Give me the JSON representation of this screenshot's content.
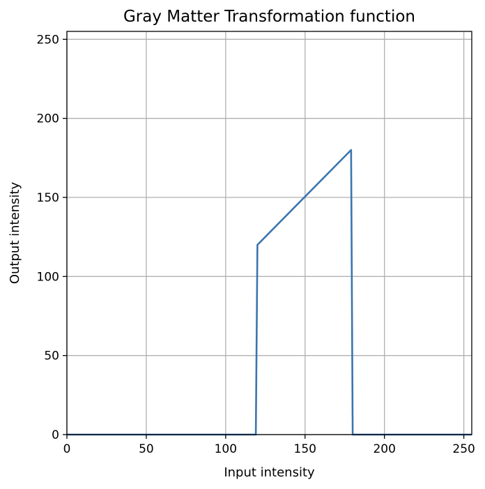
{
  "chart_data": {
    "type": "line",
    "title": "Gray Matter Transformation function",
    "xlabel": "Input intensity",
    "ylabel": "Output intensity",
    "xlim": [
      0,
      255
    ],
    "ylim": [
      0,
      255
    ],
    "xticks": [
      0,
      50,
      100,
      150,
      200,
      250
    ],
    "yticks": [
      0,
      50,
      100,
      150,
      200,
      250
    ],
    "grid": true,
    "series": [
      {
        "color": "#3b75af",
        "x": [
          0,
          119,
          120,
          179,
          180,
          255
        ],
        "y": [
          0,
          0,
          120,
          180,
          0,
          0
        ]
      }
    ]
  }
}
